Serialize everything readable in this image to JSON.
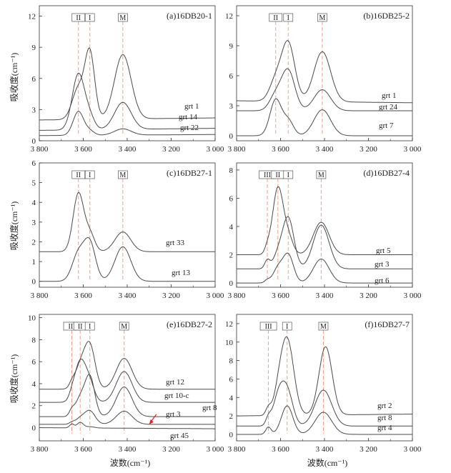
{
  "figure": {
    "xlabel": "波数(cm⁻¹)",
    "ylabel": "吸收度(cm⁻¹)"
  },
  "colors": {
    "curve": "#4a4a4a",
    "band_line": "#f0a08a",
    "axis": "#333333",
    "annotation_arrow": "#e02020"
  },
  "chart_data": [
    {
      "type": "line",
      "title": "(a)16DB20-1",
      "xlim": [
        3800,
        3000
      ],
      "xticks": [
        3800,
        3600,
        3400,
        3200,
        3000
      ],
      "xtick_labels": [
        "3 800",
        "3 600",
        "3 400",
        "3 200",
        "3 000"
      ],
      "ylim": [
        0,
        13
      ],
      "yticks": [
        0,
        3,
        6,
        9,
        12
      ],
      "bands": [
        {
          "label": "II",
          "x": 3622
        },
        {
          "label": "I",
          "x": 3570
        },
        {
          "label": "M",
          "x": 3420
        }
      ],
      "series": [
        {
          "name": "grt 1",
          "baseline": 2.0,
          "end": 2.2,
          "peaks": [
            [
              3622,
              3.0,
              28
            ],
            [
              3570,
              6.3,
              22
            ],
            [
              3420,
              6.2,
              38
            ]
          ]
        },
        {
          "name": "grt 14",
          "baseline": 1.0,
          "end": 1.2,
          "peaks": [
            [
              3622,
              5.4,
              28
            ],
            [
              3570,
              1.1,
              22
            ],
            [
              3420,
              2.6,
              38
            ]
          ]
        },
        {
          "name": "grt 22",
          "baseline": 0.5,
          "end": 0.6,
          "peaks": [
            [
              3622,
              2.3,
              24
            ],
            [
              3570,
              0.4,
              20
            ],
            [
              3420,
              0.6,
              38
            ]
          ]
        }
      ]
    },
    {
      "type": "line",
      "title": "(b)16DB25-2",
      "xlim": [
        3800,
        3000
      ],
      "xticks": [
        3800,
        3600,
        3400,
        3200,
        3000
      ],
      "xtick_labels": [
        "3 800",
        "3 600",
        "3 400",
        "3 200",
        "3 000"
      ],
      "ylim": [
        -0.5,
        13
      ],
      "yticks": [
        0,
        3,
        6,
        9,
        12
      ],
      "bands": [
        {
          "label": "II",
          "x": 3622
        },
        {
          "label": "I",
          "x": 3565
        },
        {
          "label": "M",
          "x": 3410
        }
      ],
      "series": [
        {
          "name": "grt 1",
          "baseline": 3.5,
          "end": 3.3,
          "peaks": [
            [
              3622,
              2.0,
              28
            ],
            [
              3565,
              5.8,
              30
            ],
            [
              3410,
              5.0,
              38
            ]
          ]
        },
        {
          "name": "grt 24",
          "baseline": 2.5,
          "end": 2.5,
          "peaks": [
            [
              3622,
              1.5,
              28
            ],
            [
              3565,
              4.0,
              30
            ],
            [
              3410,
              2.1,
              38
            ]
          ]
        },
        {
          "name": "grt 7",
          "baseline": 0.0,
          "end": 0.0,
          "peaks": [
            [
              3622,
              3.6,
              26
            ],
            [
              3565,
              1.5,
              24
            ],
            [
              3410,
              2.6,
              38
            ]
          ]
        }
      ]
    },
    {
      "type": "line",
      "title": "(c)16DB27-1",
      "xlim": [
        3800,
        3000
      ],
      "xticks": [
        3800,
        3600,
        3400,
        3200,
        3000
      ],
      "xtick_labels": [
        "3 800",
        "3 600",
        "3 400",
        "3 200",
        "3 000"
      ],
      "ylim": [
        -0.3,
        6
      ],
      "yticks": [
        0,
        1,
        2,
        3,
        4,
        5,
        6
      ],
      "bands": [
        {
          "label": "II",
          "x": 3622
        },
        {
          "label": "I",
          "x": 3570
        },
        {
          "label": "M",
          "x": 3420
        }
      ],
      "series": [
        {
          "name": "grt 33",
          "baseline": 1.5,
          "end": 1.5,
          "peaks": [
            [
              3622,
              2.95,
              24
            ],
            [
              3570,
              0.9,
              22
            ],
            [
              3420,
              1.0,
              36
            ]
          ]
        },
        {
          "name": "grt 13",
          "baseline": 0.0,
          "end": 0.0,
          "peaks": [
            [
              3622,
              1.4,
              28
            ],
            [
              3570,
              1.9,
              26
            ],
            [
              3420,
              1.75,
              36
            ]
          ]
        }
      ]
    },
    {
      "type": "line",
      "title": "(d)16DB27-4",
      "xlim": [
        3800,
        3000
      ],
      "xticks": [
        3800,
        3600,
        3400,
        3200,
        3000
      ],
      "xtick_labels": [
        "3 800",
        "3 600",
        "3 400",
        "3 200",
        "3 000"
      ],
      "ylim": [
        -0.3,
        8.5
      ],
      "yticks": [
        0,
        2,
        4,
        6,
        8
      ],
      "bands": [
        {
          "label": "III",
          "x": 3660
        },
        {
          "label": "II",
          "x": 3612
        },
        {
          "label": "I",
          "x": 3565
        },
        {
          "label": "M",
          "x": 3415
        }
      ],
      "series": [
        {
          "name": "grt 5",
          "baseline": 2.0,
          "end": 2.0,
          "peaks": [
            [
              3660,
              0.4,
              12
            ],
            [
              3612,
              4.7,
              24
            ],
            [
              3565,
              1.2,
              22
            ],
            [
              3415,
              2.3,
              36
            ]
          ]
        },
        {
          "name": "grt 3",
          "baseline": 1.0,
          "end": 1.0,
          "peaks": [
            [
              3660,
              0.6,
              12
            ],
            [
              3612,
              0.9,
              22
            ],
            [
              3565,
              3.6,
              26
            ],
            [
              3415,
              3.1,
              36
            ]
          ]
        },
        {
          "name": "grt 6",
          "baseline": 0.0,
          "end": 0.0,
          "peaks": [
            [
              3660,
              0.2,
              12
            ],
            [
              3612,
              1.0,
              22
            ],
            [
              3565,
              2.0,
              24
            ],
            [
              3415,
              1.7,
              36
            ]
          ]
        }
      ]
    },
    {
      "type": "line",
      "title": "(e)16DB27-2",
      "xlim": [
        3800,
        3000
      ],
      "xticks": [
        3800,
        3600,
        3400,
        3200,
        3000
      ],
      "xtick_labels": [
        "3 800",
        "3 600",
        "3 400",
        "3 200",
        "3 000"
      ],
      "ylim": [
        -1.2,
        10.3
      ],
      "yticks": [
        0,
        2,
        4,
        6,
        8,
        10
      ],
      "bands": [
        {
          "label": "III",
          "x": 3652
        },
        {
          "label": "II",
          "x": 3614
        },
        {
          "label": "I",
          "x": 3570
        },
        {
          "label": "M",
          "x": 3414
        }
      ],
      "annotation_arrow": {
        "label": "grt 8",
        "points_to": [
          3300,
          0.3
        ]
      },
      "series": [
        {
          "name": "grt 12",
          "baseline": 3.5,
          "end": 3.5,
          "peaks": [
            [
              3652,
              0.4,
              12
            ],
            [
              3614,
              2.0,
              24
            ],
            [
              3570,
              3.9,
              24
            ],
            [
              3414,
              2.8,
              36
            ]
          ]
        },
        {
          "name": "grt 10-c",
          "baseline": 2.3,
          "end": 2.3,
          "peaks": [
            [
              3652,
              0.3,
              12
            ],
            [
              3614,
              3.7,
              26
            ],
            [
              3570,
              1.5,
              22
            ],
            [
              3414,
              2.8,
              36
            ]
          ]
        },
        {
          "name": "grt 3",
          "baseline": 1.0,
          "end": 1.0,
          "peaks": [
            [
              3652,
              0.5,
              12
            ],
            [
              3614,
              1.6,
              22
            ],
            [
              3570,
              3.6,
              22
            ],
            [
              3414,
              2.7,
              36
            ]
          ]
        },
        {
          "name": "grt 8",
          "baseline": 0.3,
          "end": 0.3,
          "peaks": [
            [
              3652,
              0.15,
              12
            ],
            [
              3614,
              0.5,
              22
            ],
            [
              3570,
              1.2,
              24
            ],
            [
              3414,
              1.2,
              36
            ]
          ]
        },
        {
          "name": "grt 45",
          "baseline": 0.0,
          "end": -0.1,
          "peaks": [
            [
              3652,
              0.35,
              10
            ],
            [
              3614,
              0.5,
              14
            ],
            [
              3570,
              0.12,
              20
            ]
          ]
        }
      ]
    },
    {
      "type": "line",
      "title": "(f)16DB27-7",
      "xlim": [
        3800,
        3000
      ],
      "xticks": [
        3800,
        3600,
        3400,
        3200,
        3000
      ],
      "xtick_labels": [
        "3 800",
        "3 600",
        "3 400",
        "3 200",
        "3 000"
      ],
      "ylim": [
        -0.7,
        13
      ],
      "yticks": [
        0,
        2,
        4,
        6,
        8,
        10,
        12
      ],
      "bands": [
        {
          "label": "III",
          "x": 3655
        },
        {
          "label": "I",
          "x": 3570
        },
        {
          "label": "M",
          "x": 3405
        }
      ],
      "series": [
        {
          "name": "grt 2",
          "baseline": 2.0,
          "end": 2.2,
          "peaks": [
            [
              3655,
              0.8,
              12
            ],
            [
              3570,
              8.2,
              30
            ],
            [
              3395,
              7.4,
              30
            ],
            [
              3610,
              1.5,
              22
            ]
          ]
        },
        {
          "name": "grt 8",
          "baseline": 0.9,
          "end": 0.9,
          "peaks": [
            [
              3655,
              0.8,
              12
            ],
            [
              3610,
              3.0,
              24
            ],
            [
              3570,
              3.7,
              26
            ],
            [
              3405,
              3.9,
              38
            ]
          ]
        },
        {
          "name": "grt 4",
          "baseline": 0.0,
          "end": 0.0,
          "peaks": [
            [
              3655,
              0.8,
              12
            ],
            [
              3570,
              3.1,
              26
            ],
            [
              3405,
              2.4,
              38
            ]
          ]
        }
      ]
    }
  ]
}
